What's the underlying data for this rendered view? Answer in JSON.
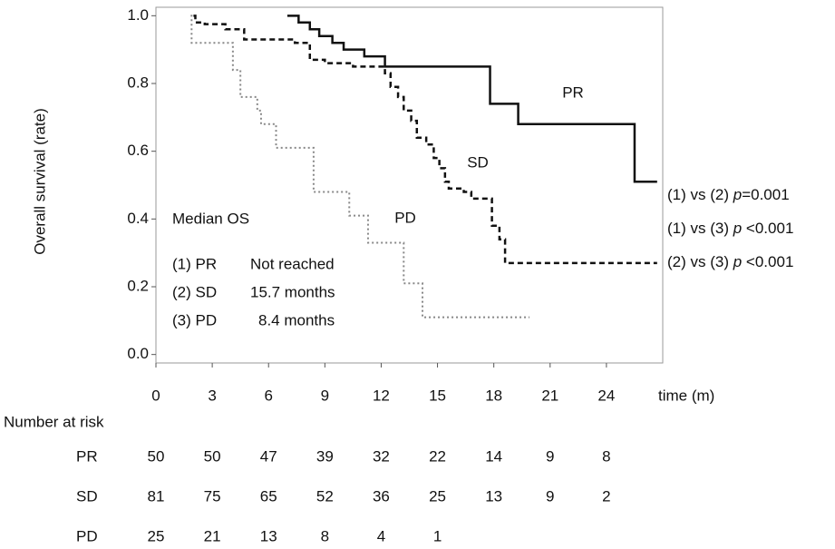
{
  "chart_data": {
    "type": "step",
    "y_label": "Overall survival (rate)",
    "x_label": "time (m)",
    "xlim": [
      0,
      27
    ],
    "ylim": [
      -0.025,
      1.025
    ],
    "xticks": [
      0,
      3,
      6,
      9,
      12,
      15,
      18,
      21,
      24
    ],
    "yticks": [
      {
        "value": 0,
        "label": "0.0"
      },
      0.2,
      0.4,
      0.6,
      0.8,
      {
        "value": 1,
        "label": "1.0"
      }
    ],
    "series": [
      {
        "name": "PR",
        "color": "#111111",
        "dash": "solid",
        "x": [
          7.0,
          7.6,
          8.2,
          8.7,
          9.4,
          10.0,
          11.1,
          12.2,
          17.8,
          19.3,
          25.5,
          26.7
        ],
        "values": [
          1.0,
          0.98,
          0.96,
          0.94,
          0.92,
          0.9,
          0.88,
          0.85,
          0.74,
          0.68,
          0.51,
          0.51
        ]
      },
      {
        "name": "SD",
        "color": "#111111",
        "dash": "dashed",
        "x": [
          2.0,
          2.1,
          2.6,
          3.7,
          4.7,
          7.4,
          8.2,
          9.0,
          10.5,
          12.2,
          12.5,
          12.9,
          13.2,
          13.6,
          13.9,
          14.4,
          14.8,
          15.1,
          15.4,
          15.6,
          16.4,
          16.8,
          17.9,
          18.3,
          18.6,
          26.7
        ],
        "values": [
          1.0,
          0.98,
          0.975,
          0.96,
          0.93,
          0.92,
          0.87,
          0.86,
          0.85,
          0.83,
          0.79,
          0.76,
          0.72,
          0.69,
          0.64,
          0.62,
          0.58,
          0.55,
          0.51,
          0.49,
          0.48,
          0.46,
          0.38,
          0.34,
          0.27,
          0.27
        ]
      },
      {
        "name": "PD",
        "color": "#888888",
        "dash": "dotted",
        "x": [
          1.85,
          1.9,
          3.8,
          4.1,
          4.5,
          5.4,
          5.6,
          6.4,
          8.4,
          10.3,
          11.3,
          13.2,
          14.2,
          19.9
        ],
        "values": [
          1.0,
          0.92,
          0.92,
          0.84,
          0.76,
          0.72,
          0.68,
          0.61,
          0.48,
          0.41,
          0.33,
          0.21,
          0.11,
          0.11
        ]
      }
    ],
    "median_title": "Median OS",
    "median_rows": [
      [
        "(1) PR",
        "Not reached"
      ],
      [
        "(2) SD",
        "15.7 months"
      ],
      [
        "(3) PD",
        "8.4 months"
      ]
    ],
    "p_values": [
      {
        "label": "(1) vs (2) ",
        "p": "p",
        "value": "=0.001"
      },
      {
        "label": "(1) vs (3) ",
        "p": "p",
        "value": " <0.001"
      },
      {
        "label": "(2) vs (3) ",
        "p": "p",
        "value": " <0.001"
      }
    ],
    "risk_table": {
      "title": "Number at risk",
      "rows": [
        {
          "name": "PR",
          "values": [
            50,
            50,
            47,
            39,
            32,
            22,
            14,
            9,
            8
          ]
        },
        {
          "name": "SD",
          "values": [
            81,
            75,
            65,
            52,
            36,
            25,
            13,
            9,
            2
          ]
        },
        {
          "name": "PD",
          "values": [
            25,
            21,
            13,
            8,
            4,
            1
          ]
        }
      ]
    }
  }
}
